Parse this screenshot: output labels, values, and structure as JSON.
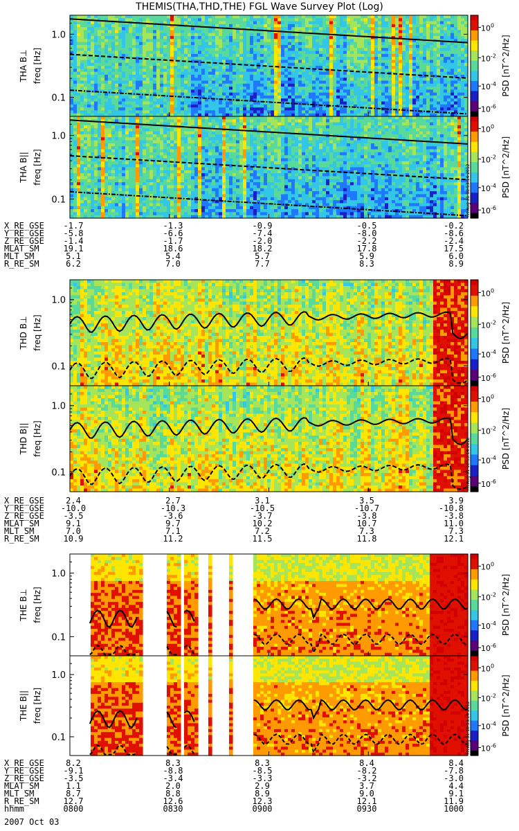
{
  "title": "THEMIS(THA,THD,THE) FGL Wave Survey Plot (Log)",
  "date_label": "2007 Oct 03",
  "stamp_text": "Fri Aug 31 18:53:14 2012",
  "colors": {
    "colormap": [
      "#000000",
      "#5a0078",
      "#1a20c8",
      "#1f78ff",
      "#33c6e6",
      "#59d99a",
      "#a6e45a",
      "#ffe600",
      "#ff9a00",
      "#e01000",
      "#d20000"
    ]
  },
  "chart_data": {
    "type": "heatmap",
    "freq_ticks": [
      "1.0",
      "0.1"
    ],
    "colorbar_ticks": [
      "10^0",
      "10^-2",
      "10^-4",
      "10^-6"
    ],
    "colorbar_label": "PSD [nT^2/Hz]",
    "panels": [
      {
        "name": "THA B⊥",
        "label_line1": "THA B⊥",
        "label_line2": "freq [Hz]",
        "probe": "tha"
      },
      {
        "name": "THA B||",
        "label_line1": "THA B||",
        "label_line2": "freq [Hz]",
        "probe": "tha"
      },
      {
        "name": "THD B⊥",
        "label_line1": "THD B⊥",
        "label_line2": "freq [Hz]",
        "probe": "thd"
      },
      {
        "name": "THD B||",
        "label_line1": "THD B||",
        "label_line2": "freq [Hz]",
        "probe": "thd"
      },
      {
        "name": "THE B⊥",
        "label_line1": "THE B⊥",
        "label_line2": "freq [Hz]",
        "probe": "the"
      },
      {
        "name": "THE B||",
        "label_line1": "THE B||",
        "label_line2": "freq [Hz]",
        "probe": "the"
      }
    ],
    "ephemeris": [
      {
        "probe": "THA",
        "rows": [
          {
            "name": "X_RE_GSE",
            "values": [
              "-1.7",
              "-1.3",
              "-0.9",
              "-0.5",
              "-0.2"
            ]
          },
          {
            "name": "Y_RE_GSE",
            "values": [
              "-5.8",
              "-6.6",
              "-7.4",
              "-8.0",
              "-8.6"
            ]
          },
          {
            "name": "Z_RE_GSE",
            "values": [
              "-1.4",
              "-1.7",
              "-2.0",
              "-2.2",
              "-2.4"
            ]
          },
          {
            "name": "MLAT_SM",
            "values": [
              "19.1",
              "18.6",
              "18.2",
              "17.8",
              "17.5"
            ]
          },
          {
            "name": "MLT_SM",
            "values": [
              "5.1",
              "5.4",
              "5.7",
              "5.9",
              "6.0"
            ]
          },
          {
            "name": "R_RE_SM",
            "values": [
              "6.2",
              "7.0",
              "7.7",
              "8.3",
              "8.9"
            ]
          }
        ]
      },
      {
        "probe": "THD",
        "rows": [
          {
            "name": "X_RE_GSE",
            "values": [
              "2.4",
              "2.7",
              "3.1",
              "3.5",
              "3.9"
            ]
          },
          {
            "name": "Y_RE_GSE",
            "values": [
              "-10.0",
              "-10.3",
              "-10.5",
              "-10.7",
              "-10.8"
            ]
          },
          {
            "name": "Z_RE_GSE",
            "values": [
              "-3.5",
              "-3.6",
              "-3.7",
              "-3.8",
              "-3.8"
            ]
          },
          {
            "name": "MLAT_SM",
            "values": [
              "9.1",
              "9.7",
              "10.2",
              "10.7",
              "11.0"
            ]
          },
          {
            "name": "MLT_SM",
            "values": [
              "7.0",
              "7.1",
              "7.2",
              "7.3",
              "7.3"
            ]
          },
          {
            "name": "R_RE_SM",
            "values": [
              "10.9",
              "11.2",
              "11.5",
              "11.8",
              "12.1"
            ]
          }
        ]
      },
      {
        "probe": "THE",
        "rows": [
          {
            "name": "X_RE_GSE",
            "values": [
              "8.2",
              "8.3",
              "8.3",
              "8.4",
              "8.4"
            ]
          },
          {
            "name": "Y_RE_GSE",
            "values": [
              "-9.1",
              "-8.8",
              "-8.5",
              "-8.2",
              "-7.8"
            ]
          },
          {
            "name": "Z_RE_GSE",
            "values": [
              "-3.5",
              "-3.4",
              "-3.3",
              "-3.2",
              "-3.0"
            ]
          },
          {
            "name": "MLAT_SM",
            "values": [
              "1.1",
              "2.0",
              "2.9",
              "3.7",
              "4.4"
            ]
          },
          {
            "name": "MLT_SM",
            "values": [
              "8.7",
              "8.8",
              "8.9",
              "9.0",
              "9.1"
            ]
          },
          {
            "name": "R_RE_SM",
            "values": [
              "12.7",
              "12.6",
              "12.3",
              "12.1",
              "11.9"
            ]
          },
          {
            "name": "hhmm",
            "values": [
              "0800",
              "0830",
              "0900",
              "0930",
              "1000"
            ]
          }
        ]
      }
    ]
  }
}
